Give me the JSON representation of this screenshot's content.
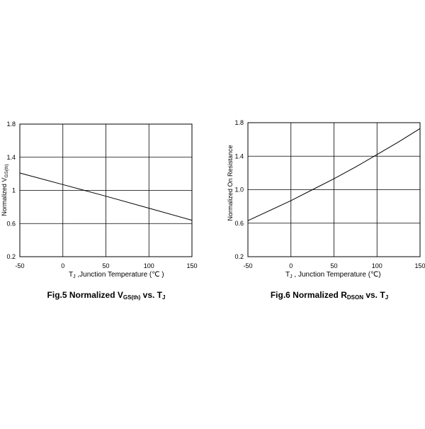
{
  "chart_data": [
    {
      "type": "line",
      "x_tick_labels": [
        "-50",
        "0",
        "50",
        "100",
        "150"
      ],
      "y_tick_labels": [
        "0.2",
        "0.6",
        "1",
        "1.4",
        "1.8"
      ],
      "xlim": [
        -50,
        150
      ],
      "ylim": [
        0.2,
        1.8
      ],
      "xlabel": {
        "prefix": "T",
        "sub": "J",
        "rest": " ,Junction Temperature (℃ )"
      },
      "ylabel": {
        "main": "Normalized V",
        "sub": "GS(th)"
      },
      "caption": {
        "prefix": "Fig.5 Normalized V",
        "sub1": "GS(th)",
        "mid": " vs. T",
        "sub2": "J"
      },
      "grid": true,
      "series": [
        {
          "x": [
            -50,
            0,
            25,
            50,
            100,
            150
          ],
          "values": [
            1.21,
            1.07,
            1.0,
            0.93,
            0.785,
            0.64
          ]
        }
      ]
    },
    {
      "type": "line",
      "x_tick_labels": [
        "-50",
        "0",
        "50",
        "100",
        "150"
      ],
      "y_tick_labels": [
        "0.2",
        "0.6",
        "1.0",
        "1.4",
        "1.8"
      ],
      "xlim": [
        -50,
        150
      ],
      "ylim": [
        0.2,
        1.8
      ],
      "xlabel": {
        "prefix": "T",
        "sub": "J",
        "rest": " , Junction Temperature (℃)"
      },
      "ylabel": {
        "main": "Normalized On Resistance",
        "sub": ""
      },
      "caption": {
        "prefix": "Fig.6 Normalized R",
        "sub1": "DSON",
        "mid": " vs. T",
        "sub2": "J"
      },
      "grid": true,
      "series": [
        {
          "x": [
            -50,
            0,
            25,
            50,
            75,
            100,
            125,
            150
          ],
          "values": [
            0.63,
            0.87,
            1.0,
            1.13,
            1.27,
            1.42,
            1.57,
            1.73
          ]
        }
      ]
    }
  ]
}
